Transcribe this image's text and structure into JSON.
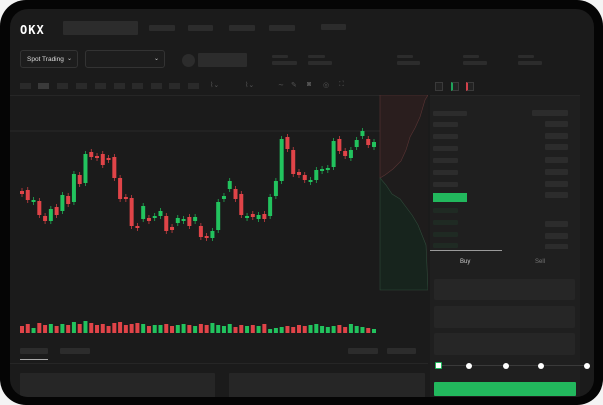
{
  "header": {
    "logo": "OKX"
  },
  "toolbar": {
    "market_selector": "Spot Trading",
    "chevron": "⌄"
  },
  "trade_panel": {
    "tabs": [
      "Buy",
      "Sell"
    ],
    "active_tab": "Buy",
    "slider_percent": 0,
    "slider_steps": [
      0,
      25,
      50,
      75,
      100
    ]
  },
  "colors": {
    "up": "#22c35e",
    "down": "#e04448",
    "accent": "#22b85d",
    "background": "#1b1b1b"
  },
  "chart": {
    "candles": [
      [
        68,
        65
      ],
      [
        69,
        59
      ],
      [
        58,
        59
      ],
      [
        58,
        44
      ],
      [
        43,
        38
      ],
      [
        38,
        50
      ],
      [
        52,
        44
      ],
      [
        48,
        64
      ],
      [
        63,
        55
      ],
      [
        57,
        85
      ],
      [
        84,
        75
      ],
      [
        76,
        105
      ],
      [
        107,
        102
      ],
      [
        103,
        101
      ],
      [
        105,
        94
      ],
      [
        101,
        99
      ],
      [
        102,
        81
      ],
      [
        81,
        60
      ],
      [
        62,
        61
      ],
      [
        61,
        33
      ],
      [
        33,
        31
      ],
      [
        40,
        53
      ],
      [
        41,
        38
      ],
      [
        42,
        43
      ],
      [
        43,
        48
      ],
      [
        43,
        28
      ],
      [
        32,
        29
      ],
      [
        36,
        41
      ],
      [
        40,
        40
      ],
      [
        42,
        33
      ],
      [
        38,
        42
      ],
      [
        33,
        22
      ],
      [
        23,
        21
      ],
      [
        21,
        28
      ],
      [
        29,
        57
      ],
      [
        60,
        63
      ],
      [
        70,
        78
      ],
      [
        70,
        60
      ],
      [
        65,
        44
      ],
      [
        42,
        43
      ],
      [
        45,
        42
      ],
      [
        40,
        44
      ],
      [
        45,
        40
      ],
      [
        43,
        62
      ],
      [
        63,
        78
      ],
      [
        78,
        120
      ],
      [
        122,
        110
      ],
      [
        109,
        85
      ],
      [
        87,
        84
      ],
      [
        84,
        79
      ],
      [
        79,
        79
      ],
      [
        79,
        89
      ],
      [
        90,
        90
      ],
      [
        91,
        91
      ],
      [
        92,
        118
      ],
      [
        120,
        108
      ],
      [
        108,
        103
      ],
      [
        101,
        109
      ],
      [
        112,
        119
      ],
      [
        123,
        128
      ],
      [
        120,
        114
      ],
      [
        112,
        117
      ]
    ],
    "volume": [
      7,
      9,
      5,
      10,
      8,
      9,
      7,
      9,
      8,
      11,
      9,
      12,
      10,
      8,
      9,
      7,
      10,
      11,
      8,
      9,
      10,
      9,
      7,
      8,
      8,
      9,
      7,
      8,
      9,
      8,
      7,
      9,
      8,
      10,
      8,
      7,
      9,
      6,
      8,
      7,
      8,
      7,
      9,
      4,
      5,
      6,
      7,
      6,
      8,
      7,
      8,
      9,
      7,
      6,
      7,
      8,
      6,
      9,
      7,
      6,
      5,
      4
    ],
    "candle_x_step": null
  },
  "bottom": {
    "tabs": [
      "",
      ""
    ]
  }
}
